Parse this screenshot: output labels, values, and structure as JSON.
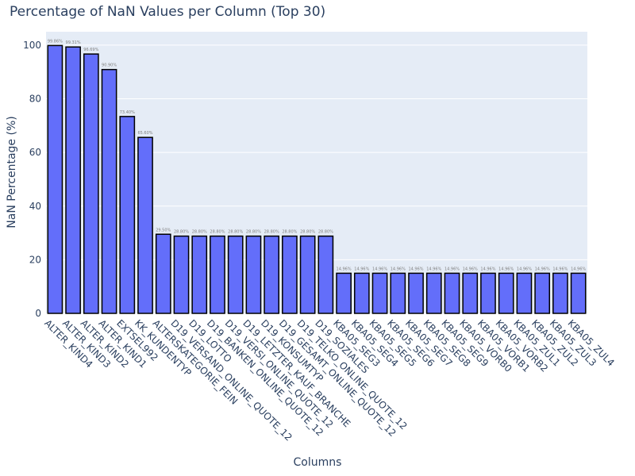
{
  "chart_data": {
    "type": "bar",
    "title": "Percentage of NaN Values per Column (Top 30)",
    "xlabel": "Columns",
    "ylabel": "NaN Percentage (%)",
    "ylim": [
      0,
      105
    ],
    "yticks": [
      0,
      20,
      40,
      60,
      80,
      100
    ],
    "grid": true,
    "colors": {
      "bar": "#636efa",
      "bar_outline": "#000000",
      "plot_bg": "#e5ecf6",
      "text": "#2a3f5f",
      "grid": "#ffffff"
    },
    "categories": [
      "ALTER_KIND4",
      "ALTER_KIND3",
      "ALTER_KIND2",
      "ALTER_KIND1",
      "EXTSEL992",
      "KK_KUNDENTYP",
      "ALTERSKATEGORIE_FEIN",
      "D19_VERSAND_ONLINE_QUOTE_12",
      "D19_LOTTO",
      "D19_BANKEN_ONLINE_QUOTE_12",
      "D19_VERSI_ONLINE_QUOTE_12",
      "D19_LETZTER_KAUF_BRANCHE",
      "D19_KONSUMTYP",
      "D19_GESAMT_ONLINE_QUOTE_12",
      "D19_TELKO_ONLINE_QUOTE_12",
      "D19_SOZIALES",
      "KBA05_SEG3",
      "KBA05_SEG4",
      "KBA05_SEG5",
      "KBA05_SEG6",
      "KBA05_SEG7",
      "KBA05_SEG8",
      "KBA05_SEG9",
      "KBA05_VORB0",
      "KBA05_VORB1",
      "KBA05_VORB2",
      "KBA05_ZUL1",
      "KBA05_ZUL2",
      "KBA05_ZUL3",
      "KBA05_ZUL4"
    ],
    "values": [
      99.86,
      99.31,
      96.69,
      90.9,
      73.4,
      65.6,
      29.5,
      28.8,
      28.8,
      28.8,
      28.8,
      28.8,
      28.8,
      28.8,
      28.8,
      28.8,
      14.96,
      14.96,
      14.96,
      14.96,
      14.96,
      14.96,
      14.96,
      14.96,
      14.96,
      14.96,
      14.96,
      14.96,
      14.96,
      14.96
    ],
    "data_labels": [
      "99.86%",
      "99.31%",
      "96.69%",
      "90.90%",
      "73.40%",
      "65.60%",
      "29.50%",
      "28.80%",
      "28.80%",
      "28.80%",
      "28.80%",
      "28.80%",
      "28.80%",
      "28.80%",
      "28.80%",
      "28.80%",
      "14.96%",
      "14.96%",
      "14.96%",
      "14.96%",
      "14.96%",
      "14.96%",
      "14.96%",
      "14.96%",
      "14.96%",
      "14.96%",
      "14.96%",
      "14.96%",
      "14.96%",
      "14.96%"
    ]
  }
}
